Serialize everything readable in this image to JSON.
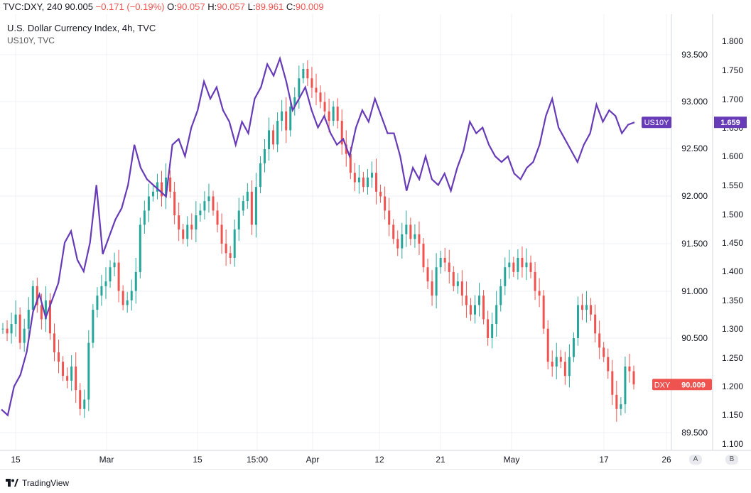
{
  "header": {
    "symbol": "TVC:DXY",
    "interval": "240",
    "last": "90.005",
    "change": "−0.171 (−0.19%)",
    "open_label": "O:",
    "open": "90.057",
    "high_label": "H:",
    "high": "90.057",
    "low_label": "L:",
    "low": "89.961",
    "close_label": "C:",
    "close": "90.009"
  },
  "legend": {
    "title": "U.S. Dollar Currency Index, 4h, TVC",
    "sub": "US10Y, TVC"
  },
  "footer": {
    "brand": "TradingView"
  },
  "corner_buttons": {
    "a": "A",
    "b": "B"
  },
  "colors": {
    "up": "#26a69a",
    "down": "#ef5350",
    "us10y": "#673ab7",
    "grid": "#eef0f3"
  },
  "chart_data": {
    "type": "line",
    "title": "U.S. Dollar Currency Index, 4h, TVC",
    "grid": true,
    "x_ticks": [
      "15",
      "Mar",
      "15",
      "15:00",
      "Apr",
      "12",
      "21",
      "May",
      "17",
      "26"
    ],
    "y_left": {
      "series": "DXY",
      "ticks": [
        "93.500",
        "93.000",
        "92.500",
        "92.000",
        "91.500",
        "91.000",
        "90.500",
        "89.500"
      ],
      "range": [
        89.35,
        93.85
      ]
    },
    "y_right": {
      "series": "US10Y",
      "ticks": [
        "1.800",
        "1.750",
        "1.700",
        "1.650",
        "1.600",
        "1.550",
        "1.500",
        "1.450",
        "1.400",
        "1.350",
        "1.300",
        "1.250",
        "1.200",
        "1.150",
        "1.100"
      ],
      "range": [
        1.08,
        1.82
      ]
    },
    "series": [
      {
        "name": "DXY",
        "kind": "candles",
        "last_label": "DXY",
        "last_value": "90.009",
        "values": [
          90.6,
          90.55,
          90.65,
          90.75,
          90.45,
          90.6,
          90.8,
          91.05,
          90.85,
          90.7,
          90.9,
          90.55,
          90.35,
          90.25,
          90.1,
          90.05,
          90.2,
          89.95,
          89.75,
          89.85,
          90.45,
          90.8,
          90.95,
          91.05,
          91.1,
          91.25,
          91.3,
          91.0,
          90.85,
          90.9,
          91.0,
          91.2,
          91.7,
          91.85,
          92.0,
          92.05,
          92.15,
          92.0,
          92.2,
          92.05,
          91.8,
          91.65,
          91.55,
          91.7,
          91.65,
          91.8,
          91.85,
          91.95,
          92.0,
          91.85,
          91.7,
          91.5,
          91.4,
          91.35,
          91.65,
          91.85,
          91.95,
          92.05,
          91.7,
          92.1,
          92.35,
          92.5,
          92.7,
          92.55,
          92.8,
          92.9,
          92.7,
          92.95,
          93.05,
          93.25,
          93.35,
          93.25,
          93.15,
          93.1,
          93.0,
          92.9,
          92.8,
          92.95,
          92.8,
          92.55,
          92.45,
          92.25,
          92.15,
          92.2,
          92.1,
          92.2,
          92.25,
          92.05,
          92.0,
          91.85,
          91.7,
          91.55,
          91.45,
          91.6,
          91.7,
          91.55,
          91.6,
          91.5,
          91.25,
          91.1,
          90.95,
          91.25,
          91.35,
          91.3,
          91.2,
          91.05,
          91.1,
          90.95,
          90.85,
          90.75,
          90.85,
          90.95,
          90.7,
          90.5,
          90.65,
          90.85,
          91.05,
          91.25,
          91.3,
          91.2,
          91.35,
          91.25,
          91.3,
          91.2,
          91.0,
          90.95,
          90.6,
          90.25,
          90.2,
          90.3,
          90.25,
          90.1,
          90.3,
          90.5,
          90.85,
          90.8,
          90.85,
          90.75,
          90.55,
          90.4,
          90.3,
          90.15,
          89.9,
          89.75,
          89.8,
          90.2,
          90.15,
          90.01
        ]
      },
      {
        "name": "US10Y",
        "kind": "line",
        "last_label": "US10Y",
        "last_value": "1.659",
        "values": [
          1.16,
          1.15,
          1.2,
          1.22,
          1.26,
          1.33,
          1.36,
          1.32,
          1.35,
          1.38,
          1.45,
          1.47,
          1.42,
          1.4,
          1.45,
          1.55,
          1.43,
          1.46,
          1.49,
          1.51,
          1.55,
          1.62,
          1.58,
          1.56,
          1.55,
          1.54,
          1.53,
          1.62,
          1.63,
          1.6,
          1.65,
          1.68,
          1.73,
          1.7,
          1.72,
          1.68,
          1.66,
          1.62,
          1.66,
          1.64,
          1.7,
          1.72,
          1.76,
          1.74,
          1.77,
          1.73,
          1.68,
          1.7,
          1.72,
          1.68,
          1.65,
          1.67,
          1.64,
          1.62,
          1.63,
          1.6,
          1.65,
          1.68,
          1.66,
          1.7,
          1.67,
          1.64,
          1.64,
          1.6,
          1.54,
          1.58,
          1.56,
          1.6,
          1.56,
          1.55,
          1.57,
          1.54,
          1.58,
          1.61,
          1.66,
          1.64,
          1.65,
          1.62,
          1.6,
          1.59,
          1.6,
          1.57,
          1.56,
          1.58,
          1.59,
          1.62,
          1.67,
          1.7,
          1.65,
          1.63,
          1.61,
          1.59,
          1.62,
          1.64,
          1.69,
          1.66,
          1.68,
          1.67,
          1.64,
          1.655,
          1.659
        ]
      }
    ]
  }
}
